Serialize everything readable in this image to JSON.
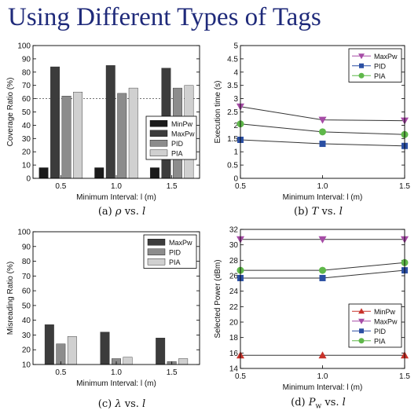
{
  "page_title": "Using Different Types of Tags",
  "captions": [
    {
      "label": "(a)",
      "symbol": "ρ",
      "vs": "vs.",
      "var": "l"
    },
    {
      "label": "(b)",
      "symbol": "T",
      "vs": "vs.",
      "var": "l"
    },
    {
      "label": "(c)",
      "symbol": "λ",
      "vs": "vs.",
      "var": "l"
    },
    {
      "label": "(d)",
      "symbol": "P",
      "sub": "w",
      "vs": "vs.",
      "var": "l"
    }
  ],
  "chart_data": [
    {
      "type": "bar",
      "categories": [
        "0.5",
        "1.0",
        "1.5"
      ],
      "series": [
        {
          "name": "MinPw",
          "color": "#1a1a1a",
          "values": [
            8,
            8,
            8
          ]
        },
        {
          "name": "MaxPw",
          "color": "#3c3c3c",
          "values": [
            84,
            85,
            83
          ]
        },
        {
          "name": "PID",
          "color": "#8c8c8c",
          "values": [
            62,
            64,
            68
          ]
        },
        {
          "name": "PIA",
          "color": "#d0d0d0",
          "values": [
            65,
            68,
            70
          ]
        }
      ],
      "xlabel": "Minimum Interval: l (m)",
      "ylabel": "Coverage Ratio (%)",
      "ylim": [
        0,
        100
      ],
      "yticks": [
        "0",
        "10",
        "20",
        "30",
        "40",
        "50",
        "60",
        "70",
        "80",
        "90",
        "100"
      ],
      "reference_line": 60,
      "legend_position": "center-right"
    },
    {
      "type": "line",
      "x": [
        "0.5",
        "1.0",
        "1.5"
      ],
      "series": [
        {
          "name": "MaxPw",
          "color": "#a64ca6",
          "marker": "triangle-down",
          "values": [
            2.7,
            2.2,
            2.17
          ]
        },
        {
          "name": "PID",
          "color": "#2b4fa3",
          "marker": "square",
          "values": [
            1.45,
            1.3,
            1.22
          ]
        },
        {
          "name": "PIA",
          "color": "#5fb84a",
          "marker": "circle",
          "values": [
            2.05,
            1.75,
            1.65
          ]
        }
      ],
      "xlabel": "Minimum Interval: l (m)",
      "ylabel": "Execution time (s)",
      "xlim": [
        0.5,
        1.5
      ],
      "ylim": [
        0,
        5
      ],
      "yticks": [
        "0",
        "0.5",
        "1",
        "1.5",
        "2",
        "2.5",
        "3",
        "3.5",
        "4",
        "4.5",
        "5"
      ],
      "legend_position": "top-right"
    },
    {
      "type": "bar",
      "categories": [
        "0.5",
        "1.0",
        "1.5"
      ],
      "series": [
        {
          "name": "MaxPw",
          "color": "#3c3c3c",
          "values": [
            37,
            32,
            28
          ]
        },
        {
          "name": "PID",
          "color": "#8c8c8c",
          "values": [
            24,
            14,
            12
          ]
        },
        {
          "name": "PIA",
          "color": "#d0d0d0",
          "values": [
            29,
            15,
            14
          ]
        }
      ],
      "xlabel": "Minimum Interval: l (m)",
      "ylabel": "Misreading Ratio (%)",
      "ylim": [
        10,
        100
      ],
      "yticks": [
        "10",
        "20",
        "30",
        "40",
        "50",
        "60",
        "70",
        "80",
        "90",
        "100"
      ],
      "legend_position": "top-right"
    },
    {
      "type": "line",
      "x": [
        "0.5",
        "1.0",
        "1.5"
      ],
      "series": [
        {
          "name": "MinPw",
          "color": "#c8322a",
          "marker": "triangle-up",
          "values": [
            15.7,
            15.7,
            15.7
          ]
        },
        {
          "name": "MaxPw",
          "color": "#a64ca6",
          "marker": "triangle-down",
          "values": [
            30.7,
            30.7,
            30.7
          ]
        },
        {
          "name": "PID",
          "color": "#2b4fa3",
          "marker": "square",
          "values": [
            25.7,
            25.7,
            26.7
          ]
        },
        {
          "name": "PIA",
          "color": "#5fb84a",
          "marker": "circle",
          "values": [
            26.7,
            26.7,
            27.7
          ]
        }
      ],
      "xlabel": "Minimum Interval: l (m)",
      "ylabel": "Selected Power (dBm)",
      "xlim": [
        0.5,
        1.5
      ],
      "ylim": [
        14,
        32
      ],
      "yticks": [
        "14",
        "16",
        "18",
        "20",
        "22",
        "24",
        "26",
        "28",
        "30",
        "32"
      ],
      "legend_position": "bottom-right"
    }
  ]
}
